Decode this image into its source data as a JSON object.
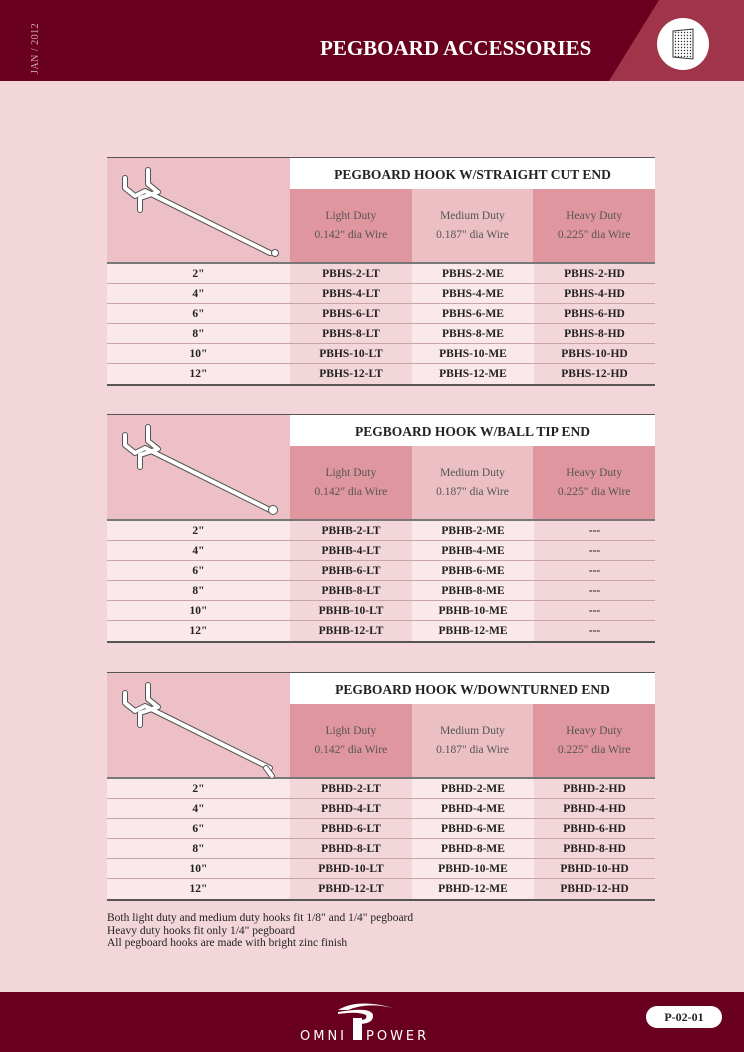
{
  "header": {
    "date": "JAN / 2012",
    "title": "PEGBOARD ACCESSORIES",
    "badge_icon": "pegboard-icon"
  },
  "columns": [
    {
      "duty": "Light Duty",
      "wire": "0.142\" dia Wire"
    },
    {
      "duty": "Medium Duty",
      "wire": "0.187\" dia Wire"
    },
    {
      "duty": "Heavy Duty",
      "wire": "0.225\" dia Wire"
    }
  ],
  "tables": [
    {
      "title": "PEGBOARD HOOK W/STRAIGHT CUT END",
      "image": "straight-cut-hook",
      "rows": [
        [
          "2\"",
          "PBHS-2-LT",
          "PBHS-2-ME",
          "PBHS-2-HD"
        ],
        [
          "4\"",
          "PBHS-4-LT",
          "PBHS-4-ME",
          "PBHS-4-HD"
        ],
        [
          "6\"",
          "PBHS-6-LT",
          "PBHS-6-ME",
          "PBHS-6-HD"
        ],
        [
          "8\"",
          "PBHS-8-LT",
          "PBHS-8-ME",
          "PBHS-8-HD"
        ],
        [
          "10\"",
          "PBHS-10-LT",
          "PBHS-10-ME",
          "PBHS-10-HD"
        ],
        [
          "12\"",
          "PBHS-12-LT",
          "PBHS-12-ME",
          "PBHS-12-HD"
        ]
      ]
    },
    {
      "title": "PEGBOARD HOOK W/BALL TIP END",
      "image": "ball-tip-hook",
      "rows": [
        [
          "2\"",
          "PBHB-2-LT",
          "PBHB-2-ME",
          "---"
        ],
        [
          "4\"",
          "PBHB-4-LT",
          "PBHB-4-ME",
          "---"
        ],
        [
          "6\"",
          "PBHB-6-LT",
          "PBHB-6-ME",
          "---"
        ],
        [
          "8\"",
          "PBHB-8-LT",
          "PBHB-8-ME",
          "---"
        ],
        [
          "10\"",
          "PBHB-10-LT",
          "PBHB-10-ME",
          "---"
        ],
        [
          "12\"",
          "PBHB-12-LT",
          "PBHB-12-ME",
          "---"
        ]
      ]
    },
    {
      "title": "PEGBOARD HOOK W/DOWNTURNED END",
      "image": "downturned-hook",
      "rows": [
        [
          "2\"",
          "PBHD-2-LT",
          "PBHD-2-ME",
          "PBHD-2-HD"
        ],
        [
          "4\"",
          "PBHD-4-LT",
          "PBHD-4-ME",
          "PBHD-4-HD"
        ],
        [
          "6\"",
          "PBHD-6-LT",
          "PBHD-6-ME",
          "PBHD-6-HD"
        ],
        [
          "8\"",
          "PBHD-8-LT",
          "PBHD-8-ME",
          "PBHD-8-HD"
        ],
        [
          "10\"",
          "PBHD-10-LT",
          "PBHD-10-ME",
          "PBHD-10-HD"
        ],
        [
          "12\"",
          "PBHD-12-LT",
          "PBHD-12-ME",
          "PBHD-12-HD"
        ]
      ]
    }
  ],
  "notes": [
    "Both light duty and medium duty hooks fit 1/8\" and 1/4\" pegboard",
    "Heavy duty hooks fit only 1/4\" pegboard",
    "All pegboard hooks are made with bright zinc finish"
  ],
  "footer": {
    "logo": "OMNI POWER",
    "page": "P-02-01"
  },
  "colors": {
    "brand": "#6a0020",
    "accent": "#a03448",
    "background": "#f3d6d9"
  }
}
